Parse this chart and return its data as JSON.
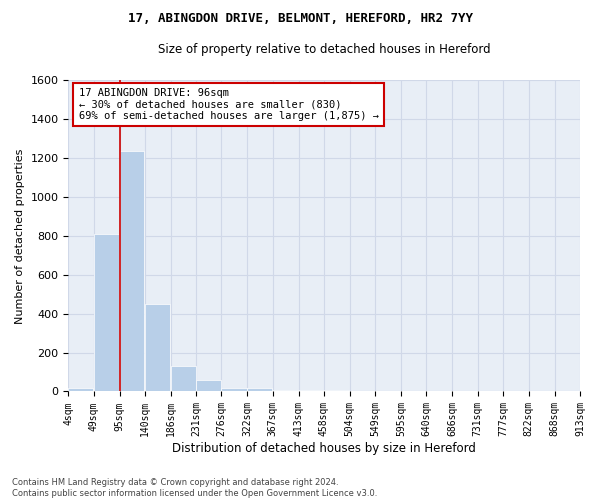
{
  "title": "17, ABINGDON DRIVE, BELMONT, HEREFORD, HR2 7YY",
  "subtitle": "Size of property relative to detached houses in Hereford",
  "xlabel": "Distribution of detached houses by size in Hereford",
  "ylabel": "Number of detached properties",
  "bins": [
    4,
    49,
    95,
    140,
    186,
    231,
    276,
    322,
    367,
    413,
    458,
    504,
    549,
    595,
    640,
    686,
    731,
    777,
    822,
    868,
    913
  ],
  "bin_labels": [
    "4sqm",
    "49sqm",
    "95sqm",
    "140sqm",
    "186sqm",
    "231sqm",
    "276sqm",
    "322sqm",
    "367sqm",
    "413sqm",
    "458sqm",
    "504sqm",
    "549sqm",
    "595sqm",
    "640sqm",
    "686sqm",
    "731sqm",
    "777sqm",
    "822sqm",
    "868sqm",
    "913sqm"
  ],
  "bar_heights": [
    20,
    810,
    1235,
    450,
    130,
    60,
    20,
    18,
    10,
    10,
    10,
    0,
    0,
    0,
    0,
    0,
    0,
    0,
    0,
    0
  ],
  "bar_color": "#b8cfe8",
  "grid_color": "#d0d8e8",
  "background_color": "#e8eef6",
  "vline_x": 96,
  "vline_color": "#cc0000",
  "ylim": [
    0,
    1600
  ],
  "yticks": [
    0,
    200,
    400,
    600,
    800,
    1000,
    1200,
    1400,
    1600
  ],
  "annotation_text": "17 ABINGDON DRIVE: 96sqm\n← 30% of detached houses are smaller (830)\n69% of semi-detached houses are larger (1,875) →",
  "annotation_box_color": "#cc0000",
  "footer_line1": "Contains HM Land Registry data © Crown copyright and database right 2024.",
  "footer_line2": "Contains public sector information licensed under the Open Government Licence v3.0."
}
